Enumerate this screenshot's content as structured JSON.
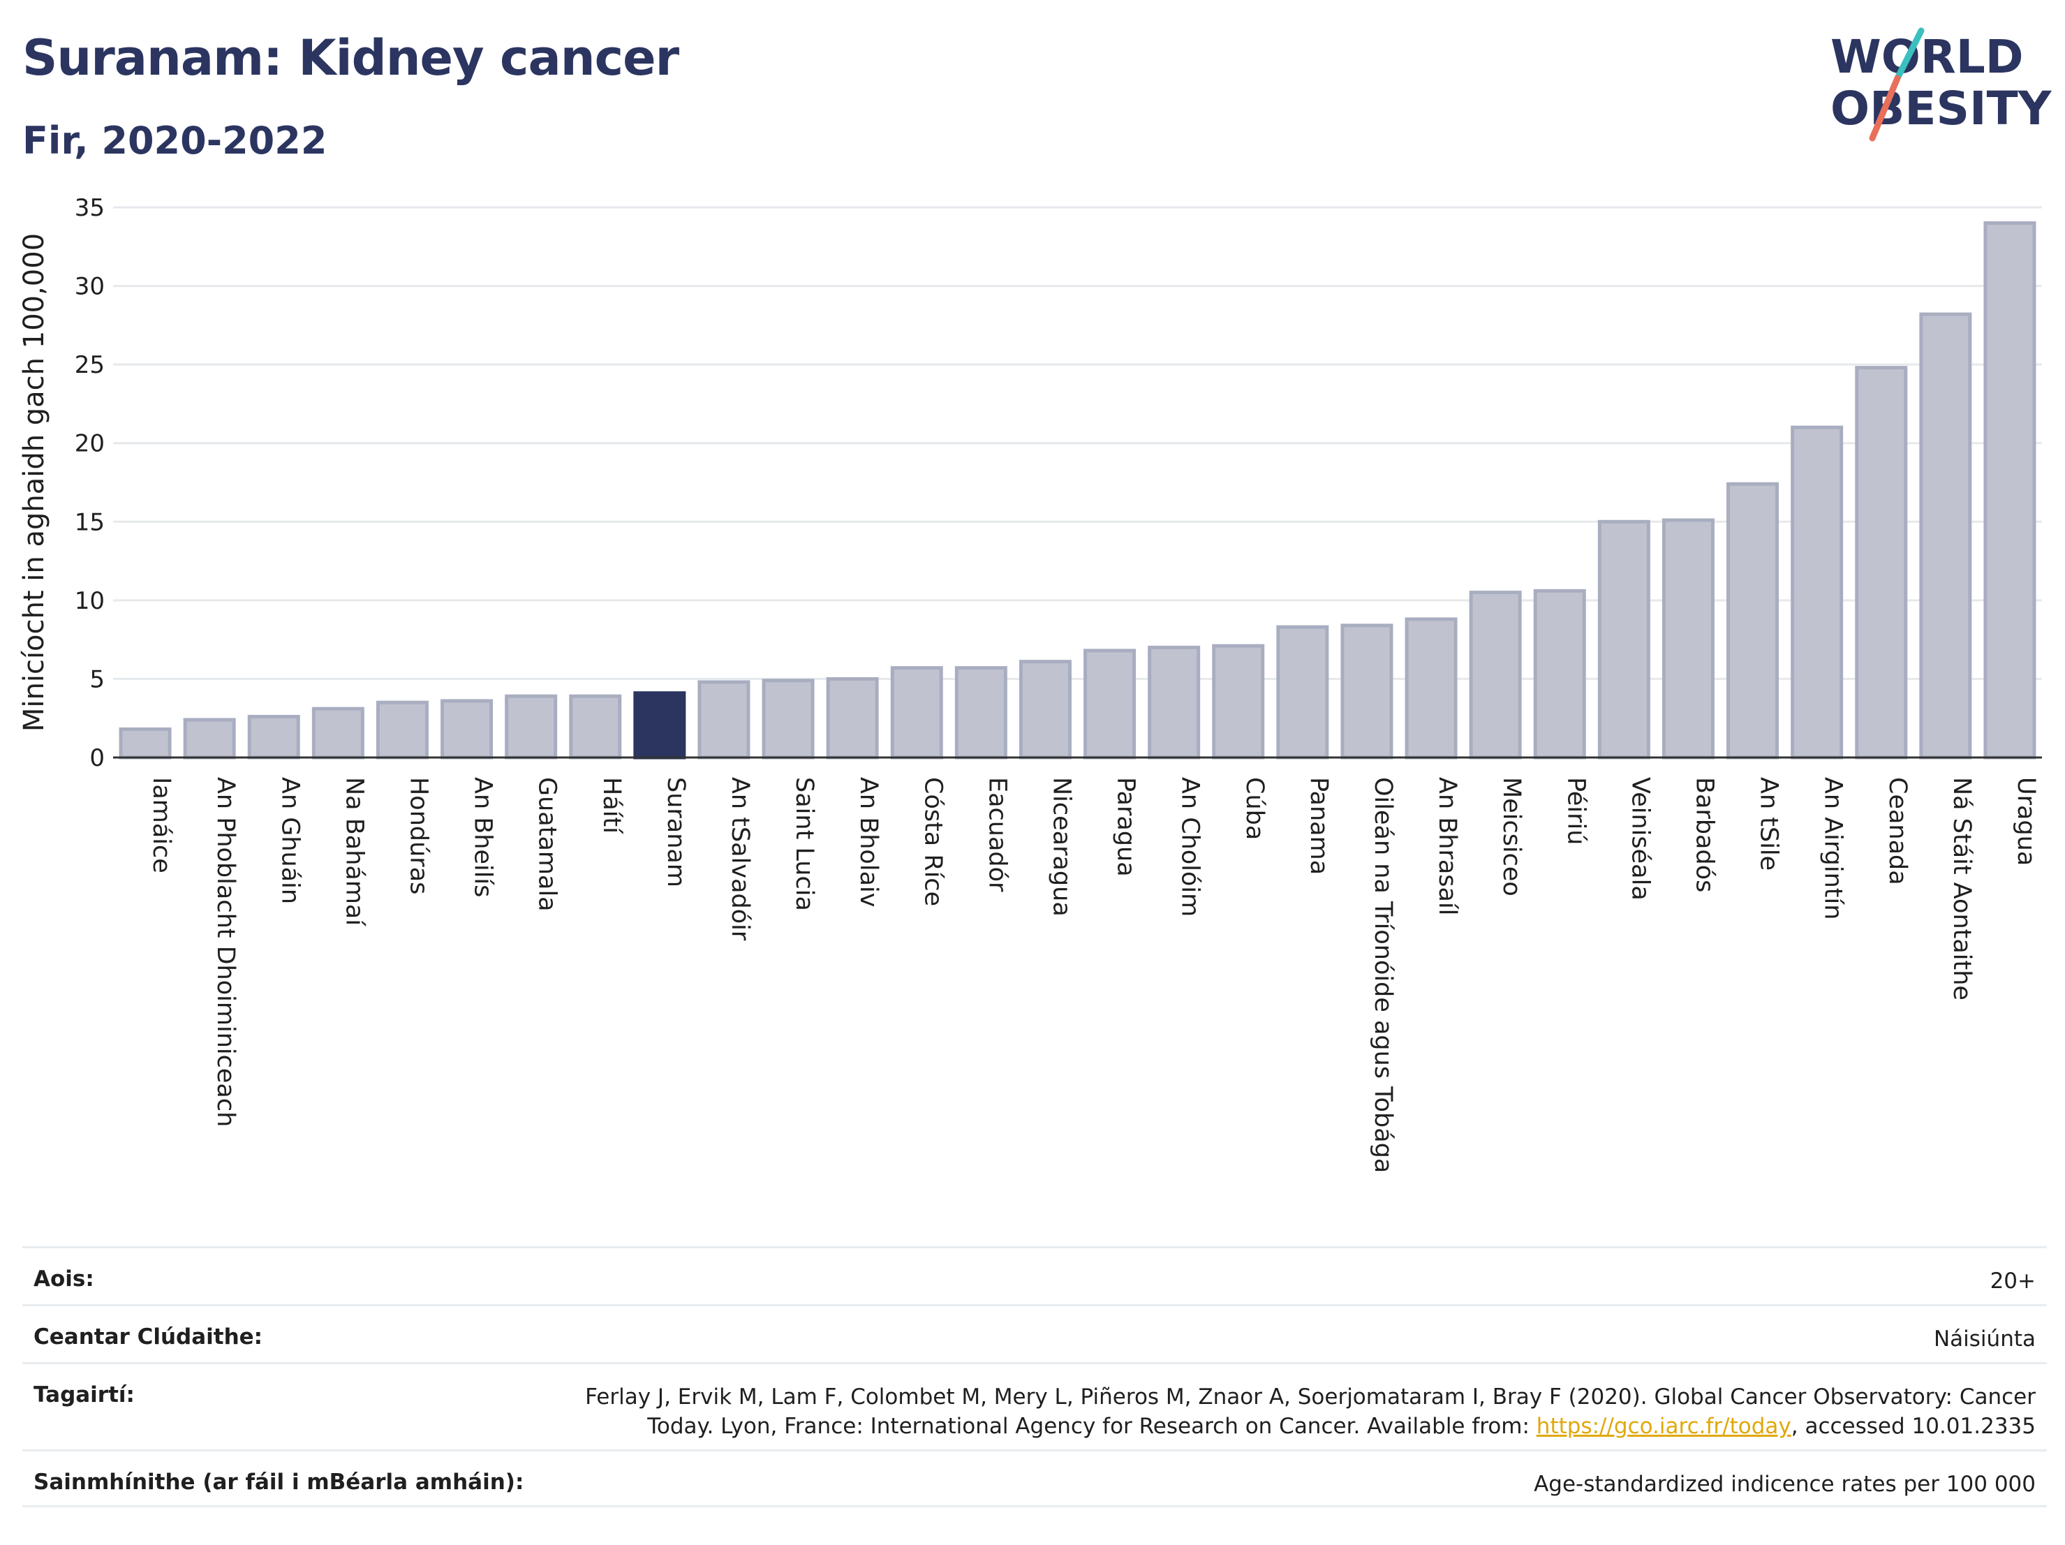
{
  "header": {
    "title": "Suranam: Kidney cancer",
    "subtitle": "Fir, 2020-2022"
  },
  "logo": {
    "line1": "WORLD",
    "line2": "OBESITY",
    "text_color": "#2b3560",
    "slash_colors": [
      "#3bbfbf",
      "#e8705a"
    ]
  },
  "colors": {
    "bar_default": "#c0c3cf",
    "bar_default_stroke": "#a9adc0",
    "bar_highlight": "#2b3560",
    "gridline": "#e6e9ec",
    "axis": "#333333"
  },
  "chart_data": {
    "type": "bar",
    "ylabel": "Minicíocht in aghaidh gach 100,000",
    "ylim": [
      0,
      35
    ],
    "yticks": [
      0,
      5,
      10,
      15,
      20,
      25,
      30,
      35
    ],
    "grid": true,
    "highlight": "Suranam",
    "categories": [
      "Iamáice",
      "An Phoblacht Dhoiminiceach",
      "An Ghuáin",
      "Na Bahámaí",
      "Hondúras",
      "An Bheilís",
      "Guatamala",
      "Háítí",
      "Suranam",
      "An tSalvadóir",
      "Saint Lucia",
      "An Bholaiv",
      "Cósta Ríce",
      "Eacuadór",
      "Nicearagua",
      "Paragua",
      "An Cholóim",
      "Cúba",
      "Panama",
      "Oileán na Tríonóide agus Tobága",
      "An Bhrasaíl",
      "Meicsiceo",
      "Péiriú",
      "Veiniséala",
      "Barbadós",
      "An tSile",
      "An Airgintín",
      "Ceanada",
      "Ná Stáit Aontaithe",
      "Uragua"
    ],
    "values": [
      1.8,
      2.4,
      2.6,
      3.1,
      3.5,
      3.6,
      3.9,
      3.9,
      4.1,
      4.8,
      4.9,
      5.0,
      5.7,
      5.7,
      6.1,
      6.8,
      7.0,
      7.1,
      8.3,
      8.4,
      8.8,
      10.5,
      10.6,
      15.0,
      15.1,
      17.4,
      21.0,
      24.8,
      28.2,
      34.0
    ]
  },
  "info": {
    "rows": [
      {
        "key": "Aois:",
        "value": "20+"
      },
      {
        "key": "Ceantar Clúdaithe:",
        "value": "Náisiúnta"
      },
      {
        "key": "Tagairtí:",
        "value_line1": "Ferlay J, Ervik M, Lam F, Colombet M, Mery L, Piñeros M, Znaor A, Soerjomataram I, Bray F (2020). Global Cancer Observatory: Cancer",
        "value_pre": "Today. Lyon, France: International Agency for Research on Cancer. Available from: ",
        "link": "https://gco.iarc.fr/today",
        "value_post": ", accessed 10.01.2335"
      },
      {
        "key": "Sainmhínithe (ar fáil i mBéarla amháin):",
        "value": "Age-standardized indicence rates per 100 000"
      }
    ]
  }
}
